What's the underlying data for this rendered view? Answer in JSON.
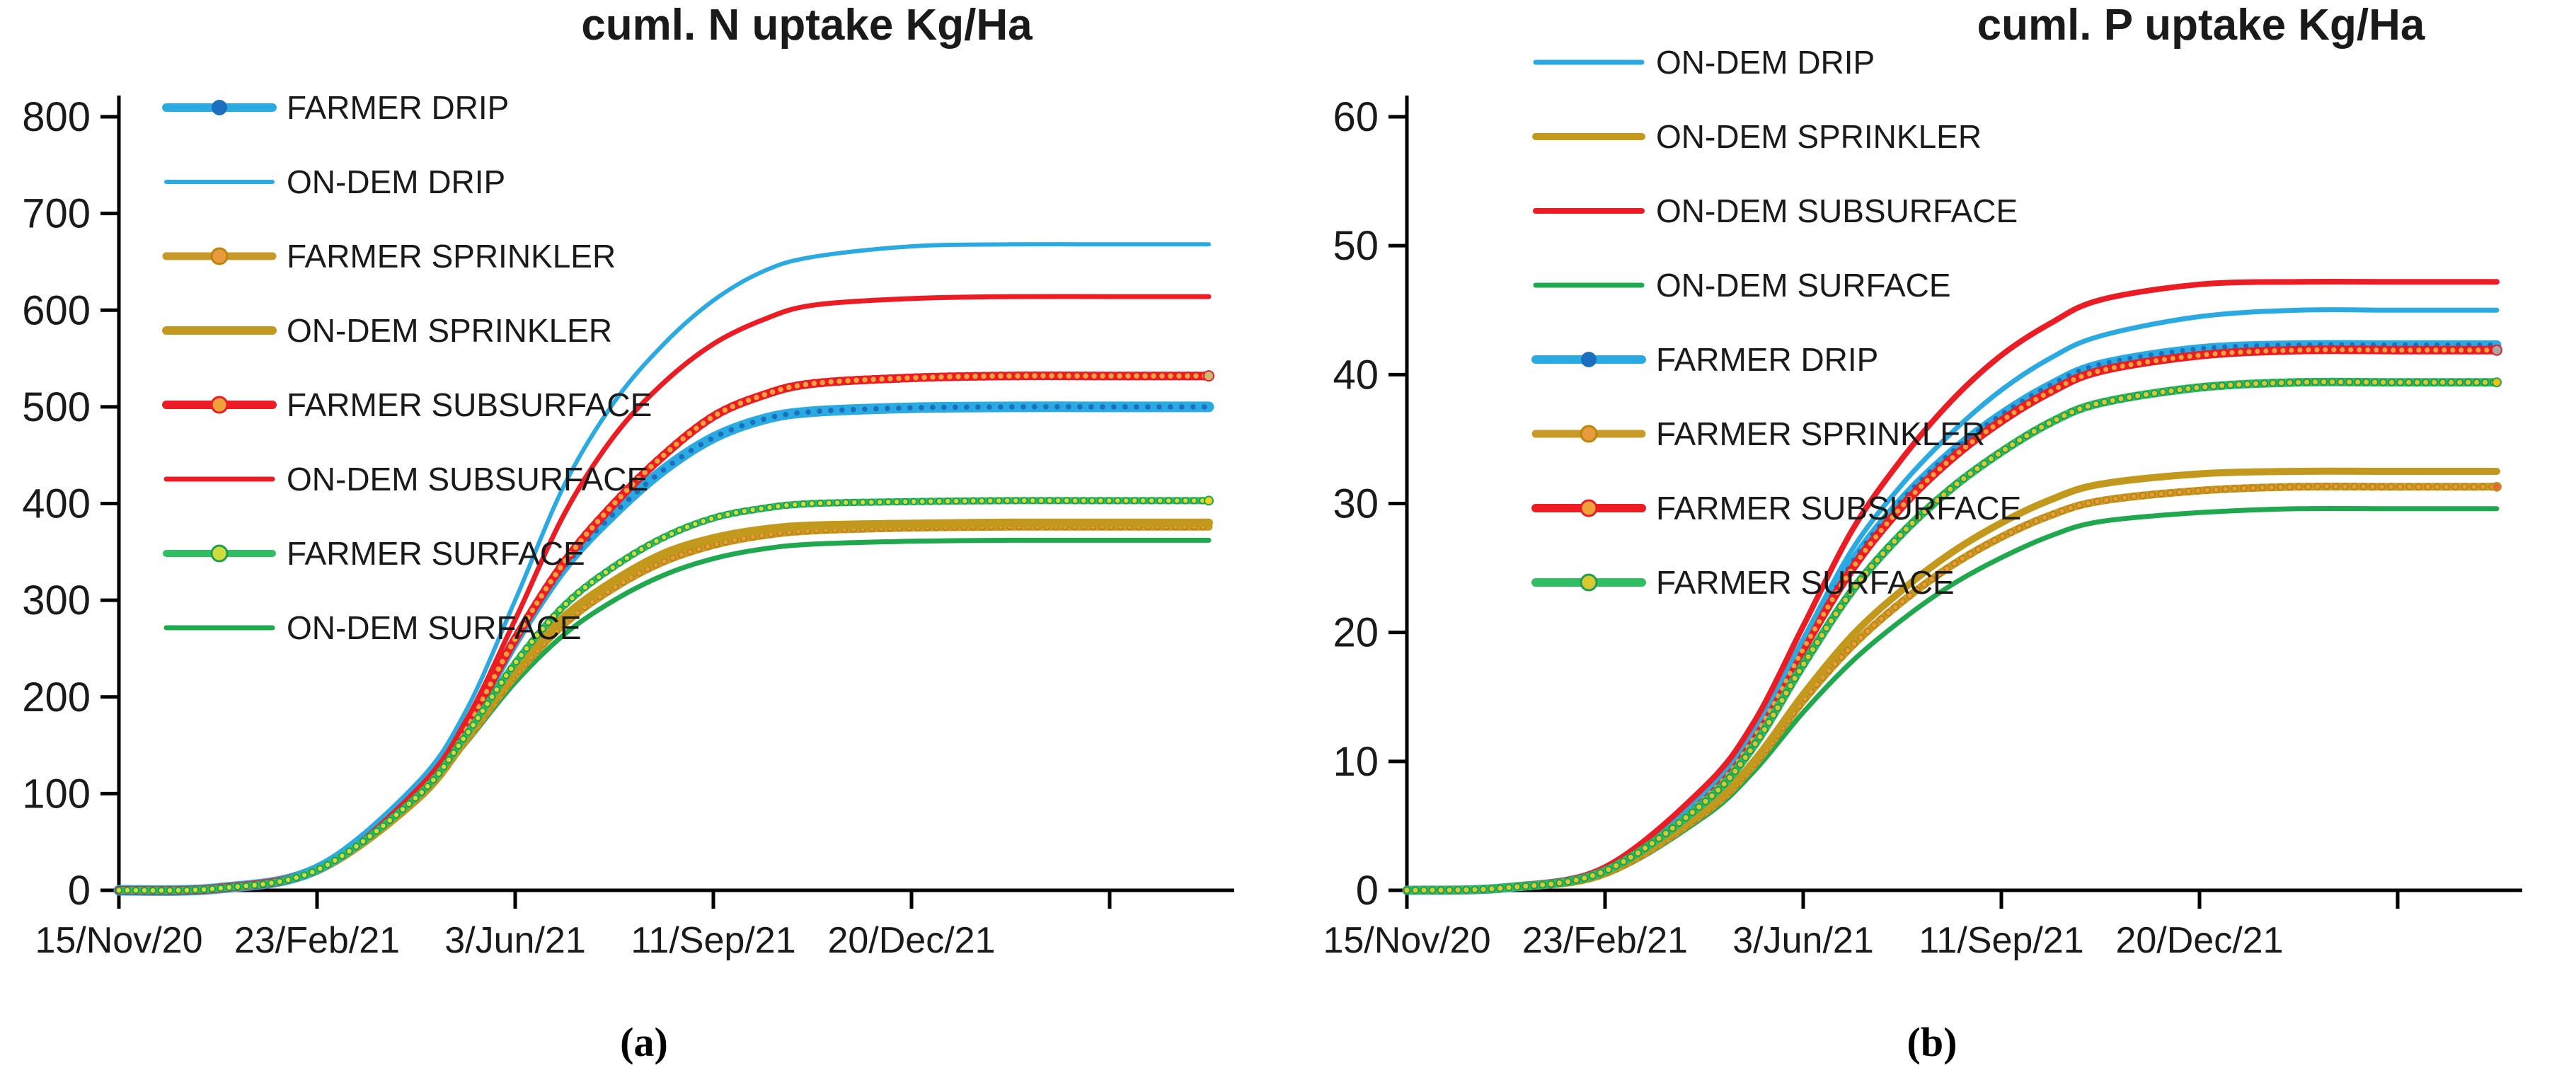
{
  "chart_data": [
    {
      "id": "n_uptake",
      "type": "line",
      "title": "cuml. N uptake Kg/Ha",
      "caption": "(a)",
      "ylabel": "",
      "xlabel": "",
      "y_axis": {
        "min": 0,
        "max": 800,
        "step": 100,
        "ticks": [
          800,
          700,
          600,
          500,
          400,
          300,
          200,
          100,
          0
        ]
      },
      "x_axis": {
        "tick_labels": [
          "15/Nov/20",
          "23/Feb/21",
          "3/Jun/21",
          "11/Sep/21",
          "20/Dec/21"
        ],
        "tick_days": [
          0,
          100,
          200,
          300,
          400
        ],
        "extra_tick_days": [
          500
        ]
      },
      "x_days": [
        0,
        50,
        100,
        150,
        175,
        200,
        225,
        250,
        275,
        300,
        325,
        350,
        400,
        450,
        500,
        550
      ],
      "legend": [
        "FARMER DRIP",
        "ON-DEM DRIP",
        "FARMER SPRINKLER",
        "ON-DEM SPRINKLER",
        "FARMER SUBSURFACE",
        "ON-DEM SUBSURFACE",
        "FARMER SURFACE",
        "ON-DEM SURFACE"
      ],
      "series": [
        {
          "name": "ON-DEM SURFACE",
          "color": "#1FA84D",
          "line_width": 7,
          "marker": null,
          "end_marker": null,
          "values": [
            0,
            2,
            20,
            92,
            152,
            215,
            265,
            300,
            326,
            343,
            353,
            358,
            361,
            362,
            362,
            362
          ]
        },
        {
          "name": "FARMER SPRINKLER",
          "color": "#C89A2A",
          "line_width": 11,
          "marker": {
            "r": 4,
            "fill": "#E99A3C",
            "stroke": "#B8860B",
            "stroke_width": 2,
            "spacing": 13
          },
          "end_marker": null,
          "values": [
            0,
            2,
            20,
            93,
            155,
            222,
            276,
            313,
            340,
            357,
            367,
            372,
            375,
            376,
            376,
            376
          ]
        },
        {
          "name": "ON-DEM SPRINKLER",
          "color": "#C3991D",
          "line_width": 12,
          "marker": null,
          "end_marker": null,
          "values": [
            0,
            2,
            21,
            95,
            158,
            228,
            283,
            320,
            348,
            364,
            373,
            377,
            379,
            380,
            380,
            380
          ]
        },
        {
          "name": "FARMER DRIP",
          "color": "#2BAAE2",
          "line_width": 15,
          "marker": {
            "r": 3.8,
            "fill": "#1C6FBF",
            "stroke": "none",
            "stroke_width": 0,
            "spacing": 16
          },
          "end_marker": null,
          "values": [
            0,
            2,
            22,
            100,
            168,
            258,
            335,
            390,
            435,
            468,
            487,
            495,
            499,
            500,
            500,
            500
          ]
        },
        {
          "name": "FARMER SUBSURFACE",
          "color": "#EC1C24",
          "line_width": 12,
          "marker": {
            "r": 5,
            "fill": "#F1A33B",
            "stroke": "#EC1C24",
            "stroke_width": 2.5,
            "spacing": 12
          },
          "end_marker": {
            "r": 7,
            "fill": "#C9B978",
            "stroke": "#EC1C24",
            "stroke_width": 2
          },
          "values": [
            0,
            2,
            22,
            100,
            168,
            260,
            340,
            400,
            450,
            490,
            512,
            524,
            530,
            532,
            532,
            532
          ]
        },
        {
          "name": "ON-DEM SUBSURFACE",
          "color": "#EC1C24",
          "line_width": 7,
          "marker": null,
          "end_marker": null,
          "values": [
            0,
            2,
            24,
            105,
            175,
            280,
            390,
            470,
            525,
            565,
            590,
            605,
            612,
            614,
            614,
            614
          ]
        },
        {
          "name": "ON-DEM DRIP",
          "color": "#2BAAE2",
          "line_width": 6,
          "marker": null,
          "end_marker": null,
          "values": [
            0,
            2,
            25,
            110,
            185,
            300,
            420,
            505,
            565,
            610,
            640,
            655,
            666,
            668,
            668,
            668
          ]
        },
        {
          "name": "FARMER SURFACE",
          "color": "#30BE62",
          "line_width": 10,
          "marker": {
            "r": 4.2,
            "fill": "#CFDC3C",
            "stroke": "#1E9E4C",
            "stroke_width": 2,
            "spacing": 12
          },
          "end_marker": {
            "r": 6,
            "fill": "#F3CF1C",
            "stroke": "#1FA84D",
            "stroke_width": 2
          },
          "values": [
            0,
            2,
            21,
            96,
            160,
            235,
            295,
            335,
            365,
            385,
            395,
            400,
            402,
            403,
            403,
            403
          ]
        }
      ]
    },
    {
      "id": "p_uptake",
      "type": "line",
      "title": "cuml. P uptake Kg/Ha",
      "caption": "(b)",
      "ylabel": "",
      "xlabel": "",
      "y_axis": {
        "min": 0,
        "max": 60,
        "step": 10,
        "ticks": [
          60,
          50,
          40,
          30,
          20,
          10,
          0
        ]
      },
      "x_axis": {
        "tick_labels": [
          "15/Nov/20",
          "23/Feb/21",
          "3/Jun/21",
          "11/Sep/21",
          "20/Dec/21"
        ],
        "tick_days": [
          0,
          100,
          200,
          300,
          400
        ],
        "extra_tick_days": [
          500
        ]
      },
      "x_days": [
        0,
        50,
        100,
        150,
        175,
        200,
        225,
        250,
        275,
        300,
        325,
        350,
        400,
        450,
        500,
        550
      ],
      "legend": [
        "ON-DEM DRIP",
        "ON-DEM SPRINKLER",
        "ON-DEM SUBSURFACE",
        "ON-DEM SURFACE",
        "FARMER DRIP",
        "FARMER SPRINKLER",
        "FARMER SUBSURFACE",
        "FARMER SURFACE"
      ],
      "series": [
        {
          "name": "ON-DEM SURFACE",
          "color": "#1FA84D",
          "line_width": 7,
          "marker": null,
          "end_marker": null,
          "values": [
            0,
            0.2,
            1.2,
            5.7,
            9.2,
            13.8,
            17.8,
            21,
            23.7,
            25.8,
            27.5,
            28.6,
            29.3,
            29.6,
            29.6,
            29.6
          ]
        },
        {
          "name": "FARMER SPRINKLER",
          "color": "#C89A2A",
          "line_width": 11,
          "marker": {
            "r": 4.2,
            "fill": "#E99A3C",
            "stroke": "#B8860B",
            "stroke_width": 2,
            "spacing": 13
          },
          "end_marker": {
            "r": 6,
            "fill": "#E06A3C",
            "stroke": "#C3991D",
            "stroke_width": 2
          },
          "values": [
            0,
            0.2,
            1.3,
            6,
            9.7,
            14.7,
            19,
            22.4,
            25.2,
            27.4,
            29.1,
            30.2,
            31,
            31.3,
            31.3,
            31.3
          ]
        },
        {
          "name": "ON-DEM SPRINKLER",
          "color": "#C3991D",
          "line_width": 10,
          "marker": null,
          "end_marker": null,
          "values": [
            0,
            0.2,
            1.4,
            6.2,
            10,
            15.2,
            19.8,
            23.3,
            26.2,
            28.5,
            30.3,
            31.5,
            32.3,
            32.5,
            32.5,
            32.5
          ]
        },
        {
          "name": "FARMER DRIP",
          "color": "#2BAAE2",
          "line_width": 13,
          "marker": {
            "r": 3.5,
            "fill": "#1C6FBF",
            "stroke": "none",
            "stroke_width": 0,
            "spacing": 15
          },
          "end_marker": null,
          "values": [
            0,
            0.2,
            1.6,
            7.2,
            12,
            19,
            25.5,
            30.3,
            34,
            36.9,
            39.2,
            40.8,
            42,
            42.3,
            42.3,
            42.3
          ]
        },
        {
          "name": "FARMER SUBSURFACE",
          "color": "#EC1C24",
          "line_width": 12,
          "marker": {
            "r": 4.8,
            "fill": "#F1A33B",
            "stroke": "#EC1C24",
            "stroke_width": 2.5,
            "spacing": 12
          },
          "end_marker": {
            "r": 7,
            "fill": "#A6A6A6",
            "stroke": "#EC1C24",
            "stroke_width": 2
          },
          "values": [
            0,
            0.2,
            1.6,
            7.1,
            11.8,
            18.7,
            25,
            29.8,
            33.5,
            36.4,
            38.7,
            40.3,
            41.5,
            41.9,
            41.9,
            41.9
          ]
        },
        {
          "name": "ON-DEM DRIP",
          "color": "#2BAAE2",
          "line_width": 7,
          "marker": null,
          "end_marker": null,
          "values": [
            0,
            0.2,
            1.7,
            7.6,
            12.5,
            19.5,
            26.5,
            31.5,
            35.5,
            38.8,
            41.3,
            43,
            44.5,
            45,
            45,
            45
          ]
        },
        {
          "name": "ON-DEM SUBSURFACE",
          "color": "#EC1C24",
          "line_width": 8,
          "marker": null,
          "end_marker": null,
          "values": [
            0,
            0.2,
            1.8,
            8,
            13,
            20.5,
            28,
            33.5,
            38,
            41.5,
            44,
            45.8,
            47,
            47.2,
            47.2,
            47.2
          ]
        },
        {
          "name": "FARMER SURFACE",
          "color": "#30BE62",
          "line_width": 12,
          "marker": {
            "r": 4.5,
            "fill": "#D9C832",
            "stroke": "#1E9E4C",
            "stroke_width": 2,
            "spacing": 12
          },
          "end_marker": {
            "r": 6,
            "fill": "#F5C211",
            "stroke": "#1FA84D",
            "stroke_width": 2
          },
          "values": [
            0,
            0.2,
            1.5,
            6.8,
            11.2,
            17.5,
            23.3,
            27.7,
            31.2,
            34,
            36.3,
            37.8,
            39,
            39.4,
            39.4,
            39.4
          ]
        }
      ]
    }
  ]
}
